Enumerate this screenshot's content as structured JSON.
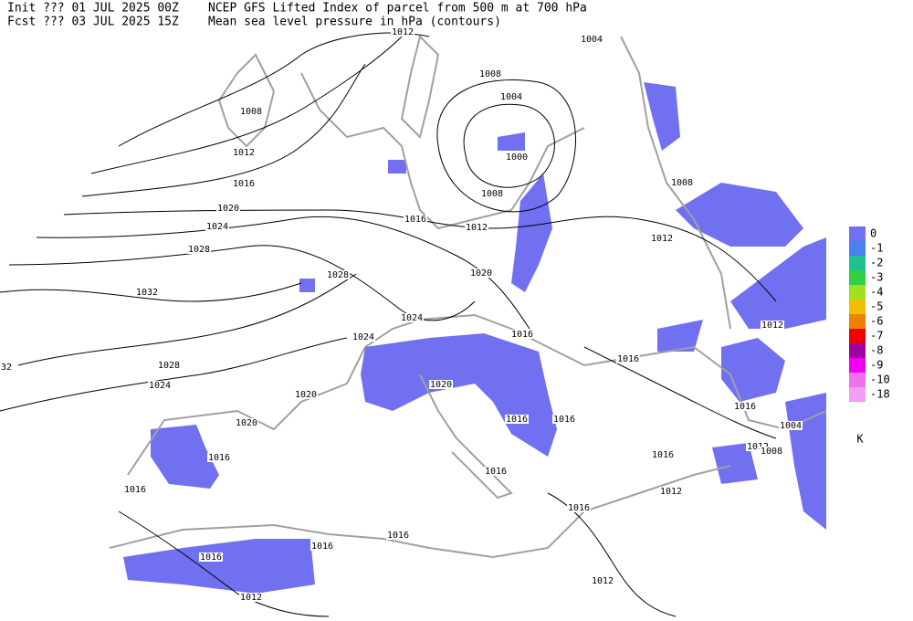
{
  "header": {
    "init": "Init  ??? 01 JUL 2025 00Z",
    "fcst": "Fcst ??? 03 JUL 2025 15Z",
    "title": "NCEP GFS Lifted Index of parcel from 500 m at 700 hPa",
    "subtitle": "Mean sea level pressure in hPa (contours)"
  },
  "contour_labels": [
    1012,
    1004,
    1008,
    1004,
    1008,
    1000,
    1012,
    1016,
    1008,
    1008,
    1020,
    1016,
    1012,
    1024,
    1012,
    1028,
    1028,
    1020,
    1032,
    1024,
    1012,
    1024,
    1016,
    1016,
    1028,
    32,
    1024,
    1020,
    1020,
    1016,
    1016,
    1016,
    1020,
    1004,
    1012,
    1008,
    1016,
    1016,
    1016,
    1016,
    1012,
    1016,
    1016,
    1016,
    1016,
    1012,
    1012
  ],
  "legend": {
    "levels": [
      {
        "value": 0,
        "color": "#7070f0"
      },
      {
        "value": -1,
        "color": "#4a80f0"
      },
      {
        "value": -2,
        "color": "#20c090"
      },
      {
        "value": -3,
        "color": "#30d040"
      },
      {
        "value": -4,
        "color": "#a0e020"
      },
      {
        "value": -5,
        "color": "#f0c000"
      },
      {
        "value": -6,
        "color": "#f08000"
      },
      {
        "value": -7,
        "color": "#f00000"
      },
      {
        "value": -8,
        "color": "#a000a0"
      },
      {
        "value": -9,
        "color": "#f000f0"
      },
      {
        "value": -10,
        "color": "#f070f0"
      },
      {
        "value": -18,
        "color": "#f0a0f0"
      }
    ],
    "unit": "K"
  }
}
